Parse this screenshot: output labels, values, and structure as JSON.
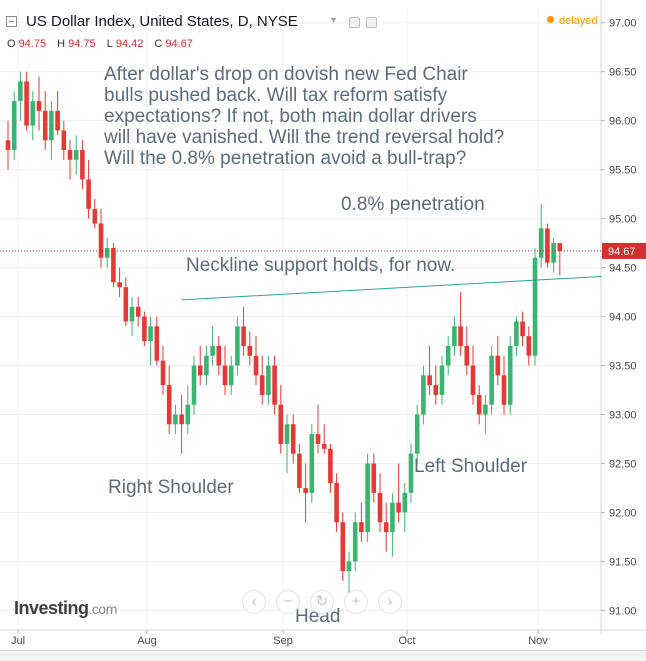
{
  "header": {
    "title": "US Dollar Index, United States, D, NYSE",
    "delayed_label": "delayed",
    "ohlc": {
      "o_label": "O",
      "o": "94.75",
      "h_label": "H",
      "h": "94.75",
      "l_label": "L",
      "l": "94.42",
      "c_label": "C",
      "c": "94.67"
    }
  },
  "annotations": {
    "main_note": [
      "After dollar's drop on dovish new Fed Chair",
      "bulls pushed back. Will tax reform satisfy",
      "expectations? If not, both main dollar drivers",
      "will have vanished. Will the trend reversal hold?",
      "Will the 0.8% penetration avoid a bull-trap?"
    ],
    "penetration": "0.8% penetration",
    "neckline": "Neckline support holds, for now.",
    "right_shoulder": "Right Shoulder",
    "head": "Head",
    "left_shoulder": "Left Shoulder"
  },
  "logo": {
    "text": "Investing",
    "suffix": ".com"
  },
  "colors": {
    "up": "#3cb371",
    "down": "#e53935",
    "price_line": "#d32f2f",
    "neckline": "#26a69a",
    "grid": "#eef0f3",
    "axis_text": "#4a4a4a",
    "annotation": "#5d6c7a"
  },
  "chart_data": {
    "type": "candlestick",
    "symbol": "US Dollar Index",
    "interval": "D",
    "exchange": "NYSE",
    "y_axis": {
      "min": 90.8,
      "max": 97.15,
      "ticks": [
        "97.00",
        "96.50",
        "96.00",
        "95.50",
        "95.00",
        "94.50",
        "94.00",
        "93.50",
        "93.00",
        "92.50",
        "92.00",
        "91.50",
        "91.00"
      ]
    },
    "x_axis": {
      "labels": [
        "Jul",
        "Aug",
        "Sep",
        "Oct",
        "Nov"
      ]
    },
    "last_price": "94.67",
    "candles": [
      {
        "o": 95.8,
        "h": 96.0,
        "l": 95.5,
        "c": 95.7
      },
      {
        "o": 95.7,
        "h": 96.3,
        "l": 95.6,
        "c": 96.2
      },
      {
        "o": 96.2,
        "h": 96.5,
        "l": 96.0,
        "c": 96.4
      },
      {
        "o": 96.4,
        "h": 96.5,
        "l": 95.9,
        "c": 95.95
      },
      {
        "o": 95.95,
        "h": 96.3,
        "l": 95.8,
        "c": 96.2
      },
      {
        "o": 96.2,
        "h": 96.45,
        "l": 95.9,
        "c": 96.1
      },
      {
        "o": 96.1,
        "h": 96.3,
        "l": 95.7,
        "c": 95.8
      },
      {
        "o": 95.8,
        "h": 96.2,
        "l": 95.6,
        "c": 96.1
      },
      {
        "o": 96.1,
        "h": 96.3,
        "l": 95.85,
        "c": 95.9
      },
      {
        "o": 95.9,
        "h": 96.0,
        "l": 95.6,
        "c": 95.7
      },
      {
        "o": 95.7,
        "h": 95.8,
        "l": 95.4,
        "c": 95.6
      },
      {
        "o": 95.6,
        "h": 95.85,
        "l": 95.45,
        "c": 95.7
      },
      {
        "o": 95.7,
        "h": 95.8,
        "l": 95.3,
        "c": 95.4
      },
      {
        "o": 95.4,
        "h": 95.6,
        "l": 95.0,
        "c": 95.1
      },
      {
        "o": 95.1,
        "h": 95.2,
        "l": 94.9,
        "c": 94.95
      },
      {
        "o": 94.95,
        "h": 95.1,
        "l": 94.5,
        "c": 94.6
      },
      {
        "o": 94.6,
        "h": 94.8,
        "l": 94.5,
        "c": 94.7
      },
      {
        "o": 94.7,
        "h": 94.75,
        "l": 94.3,
        "c": 94.35
      },
      {
        "o": 94.35,
        "h": 94.5,
        "l": 94.2,
        "c": 94.3
      },
      {
        "o": 94.3,
        "h": 94.4,
        "l": 93.9,
        "c": 93.95
      },
      {
        "o": 93.95,
        "h": 94.2,
        "l": 93.8,
        "c": 94.1
      },
      {
        "o": 94.1,
        "h": 94.2,
        "l": 93.9,
        "c": 94.0
      },
      {
        "o": 94.0,
        "h": 94.05,
        "l": 93.7,
        "c": 93.75
      },
      {
        "o": 93.75,
        "h": 94.0,
        "l": 93.5,
        "c": 93.9
      },
      {
        "o": 93.9,
        "h": 94.0,
        "l": 93.5,
        "c": 93.55
      },
      {
        "o": 93.55,
        "h": 93.7,
        "l": 93.2,
        "c": 93.3
      },
      {
        "o": 93.3,
        "h": 93.5,
        "l": 92.8,
        "c": 92.9
      },
      {
        "o": 92.9,
        "h": 93.1,
        "l": 92.8,
        "c": 93.0
      },
      {
        "o": 93.0,
        "h": 93.2,
        "l": 92.6,
        "c": 92.9
      },
      {
        "o": 92.9,
        "h": 93.3,
        "l": 92.8,
        "c": 93.1
      },
      {
        "o": 93.1,
        "h": 93.6,
        "l": 93.0,
        "c": 93.5
      },
      {
        "o": 93.5,
        "h": 93.7,
        "l": 93.3,
        "c": 93.4
      },
      {
        "o": 93.4,
        "h": 93.7,
        "l": 93.3,
        "c": 93.6
      },
      {
        "o": 93.6,
        "h": 93.9,
        "l": 93.5,
        "c": 93.7
      },
      {
        "o": 93.7,
        "h": 93.8,
        "l": 93.4,
        "c": 93.5
      },
      {
        "o": 93.5,
        "h": 93.7,
        "l": 93.2,
        "c": 93.3
      },
      {
        "o": 93.3,
        "h": 93.6,
        "l": 93.2,
        "c": 93.5
      },
      {
        "o": 93.5,
        "h": 94.0,
        "l": 93.4,
        "c": 93.9
      },
      {
        "o": 93.9,
        "h": 94.1,
        "l": 93.6,
        "c": 93.7
      },
      {
        "o": 93.7,
        "h": 93.85,
        "l": 93.5,
        "c": 93.6
      },
      {
        "o": 93.6,
        "h": 93.8,
        "l": 93.3,
        "c": 93.4
      },
      {
        "o": 93.4,
        "h": 93.6,
        "l": 93.1,
        "c": 93.2
      },
      {
        "o": 93.2,
        "h": 93.6,
        "l": 93.1,
        "c": 93.5
      },
      {
        "o": 93.5,
        "h": 93.6,
        "l": 93.0,
        "c": 93.1
      },
      {
        "o": 93.1,
        "h": 93.3,
        "l": 92.6,
        "c": 92.7
      },
      {
        "o": 92.7,
        "h": 93.0,
        "l": 92.4,
        "c": 92.9
      },
      {
        "o": 92.9,
        "h": 93.0,
        "l": 92.5,
        "c": 92.6
      },
      {
        "o": 92.6,
        "h": 92.7,
        "l": 92.2,
        "c": 92.25
      },
      {
        "o": 92.25,
        "h": 92.5,
        "l": 91.9,
        "c": 92.2
      },
      {
        "o": 92.2,
        "h": 92.9,
        "l": 92.1,
        "c": 92.8
      },
      {
        "o": 92.8,
        "h": 93.1,
        "l": 92.6,
        "c": 92.7
      },
      {
        "o": 92.7,
        "h": 92.9,
        "l": 92.6,
        "c": 92.65
      },
      {
        "o": 92.65,
        "h": 92.7,
        "l": 92.2,
        "c": 92.3
      },
      {
        "o": 92.3,
        "h": 92.4,
        "l": 91.8,
        "c": 91.9
      },
      {
        "o": 91.9,
        "h": 92.0,
        "l": 91.3,
        "c": 91.4
      },
      {
        "o": 91.4,
        "h": 91.6,
        "l": 91.05,
        "c": 91.5
      },
      {
        "o": 91.5,
        "h": 92.0,
        "l": 91.4,
        "c": 91.9
      },
      {
        "o": 91.9,
        "h": 92.1,
        "l": 91.7,
        "c": 91.8
      },
      {
        "o": 91.8,
        "h": 92.6,
        "l": 91.7,
        "c": 92.5
      },
      {
        "o": 92.5,
        "h": 92.6,
        "l": 92.1,
        "c": 92.2
      },
      {
        "o": 92.2,
        "h": 92.4,
        "l": 91.8,
        "c": 91.9
      },
      {
        "o": 91.9,
        "h": 92.1,
        "l": 91.6,
        "c": 91.8
      },
      {
        "o": 91.8,
        "h": 92.2,
        "l": 91.55,
        "c": 92.1
      },
      {
        "o": 92.1,
        "h": 92.5,
        "l": 91.9,
        "c": 92.0
      },
      {
        "o": 92.0,
        "h": 92.3,
        "l": 91.8,
        "c": 92.2
      },
      {
        "o": 92.2,
        "h": 92.7,
        "l": 92.1,
        "c": 92.6
      },
      {
        "o": 92.6,
        "h": 93.1,
        "l": 92.5,
        "c": 93.0
      },
      {
        "o": 93.0,
        "h": 93.5,
        "l": 92.9,
        "c": 93.4
      },
      {
        "o": 93.4,
        "h": 93.7,
        "l": 93.2,
        "c": 93.3
      },
      {
        "o": 93.3,
        "h": 93.5,
        "l": 93.1,
        "c": 93.2
      },
      {
        "o": 93.2,
        "h": 93.6,
        "l": 93.1,
        "c": 93.5
      },
      {
        "o": 93.5,
        "h": 93.8,
        "l": 93.4,
        "c": 93.7
      },
      {
        "o": 93.7,
        "h": 94.0,
        "l": 93.6,
        "c": 93.9
      },
      {
        "o": 93.9,
        "h": 94.25,
        "l": 93.6,
        "c": 93.7
      },
      {
        "o": 93.7,
        "h": 93.9,
        "l": 93.4,
        "c": 93.5
      },
      {
        "o": 93.5,
        "h": 93.7,
        "l": 93.1,
        "c": 93.2
      },
      {
        "o": 93.2,
        "h": 93.3,
        "l": 92.9,
        "c": 93.0
      },
      {
        "o": 93.0,
        "h": 93.2,
        "l": 92.8,
        "c": 93.1
      },
      {
        "o": 93.1,
        "h": 93.7,
        "l": 93.0,
        "c": 93.6
      },
      {
        "o": 93.6,
        "h": 93.8,
        "l": 93.3,
        "c": 93.4
      },
      {
        "o": 93.4,
        "h": 93.6,
        "l": 93.0,
        "c": 93.1
      },
      {
        "o": 93.1,
        "h": 93.8,
        "l": 93.0,
        "c": 93.7
      },
      {
        "o": 93.7,
        "h": 94.0,
        "l": 93.6,
        "c": 93.95
      },
      {
        "o": 93.95,
        "h": 94.05,
        "l": 93.7,
        "c": 93.8
      },
      {
        "o": 93.8,
        "h": 93.9,
        "l": 93.5,
        "c": 93.6
      },
      {
        "o": 93.6,
        "h": 94.7,
        "l": 93.5,
        "c": 94.6
      },
      {
        "o": 94.6,
        "h": 95.15,
        "l": 94.5,
        "c": 94.9
      },
      {
        "o": 94.9,
        "h": 94.95,
        "l": 94.5,
        "c": 94.55
      },
      {
        "o": 94.55,
        "h": 94.8,
        "l": 94.45,
        "c": 94.75
      },
      {
        "o": 94.75,
        "h": 94.75,
        "l": 94.42,
        "c": 94.67
      }
    ],
    "neckline": {
      "from_index": 28,
      "from_value": 94.17,
      "to_index": 93,
      "to_value": 94.4
    }
  }
}
